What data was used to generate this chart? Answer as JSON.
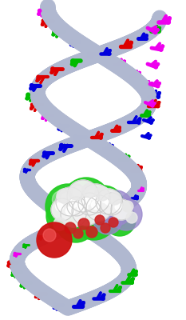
{
  "background_color": "#ffffff",
  "figure_size": [
    2.33,
    4.0
  ],
  "dpi": 100,
  "helix": {
    "n_turns": 1.8,
    "n_points": 500,
    "backbone_color": "#b0b8d0",
    "backbone_linewidth": 14,
    "backbone_alpha": 0.85,
    "strand1_phase": 0.0,
    "strand2_phase": 3.14159
  },
  "base_colors": [
    "#dd0000",
    "#00bb00",
    "#0000dd",
    "#ee00ee"
  ],
  "ligand_green": "#22cc22",
  "ligand_purple": "#9988cc",
  "ligand_white": "#f2f2f2",
  "red_sphere_color": "#cc1111",
  "small_red": "#cc2222"
}
